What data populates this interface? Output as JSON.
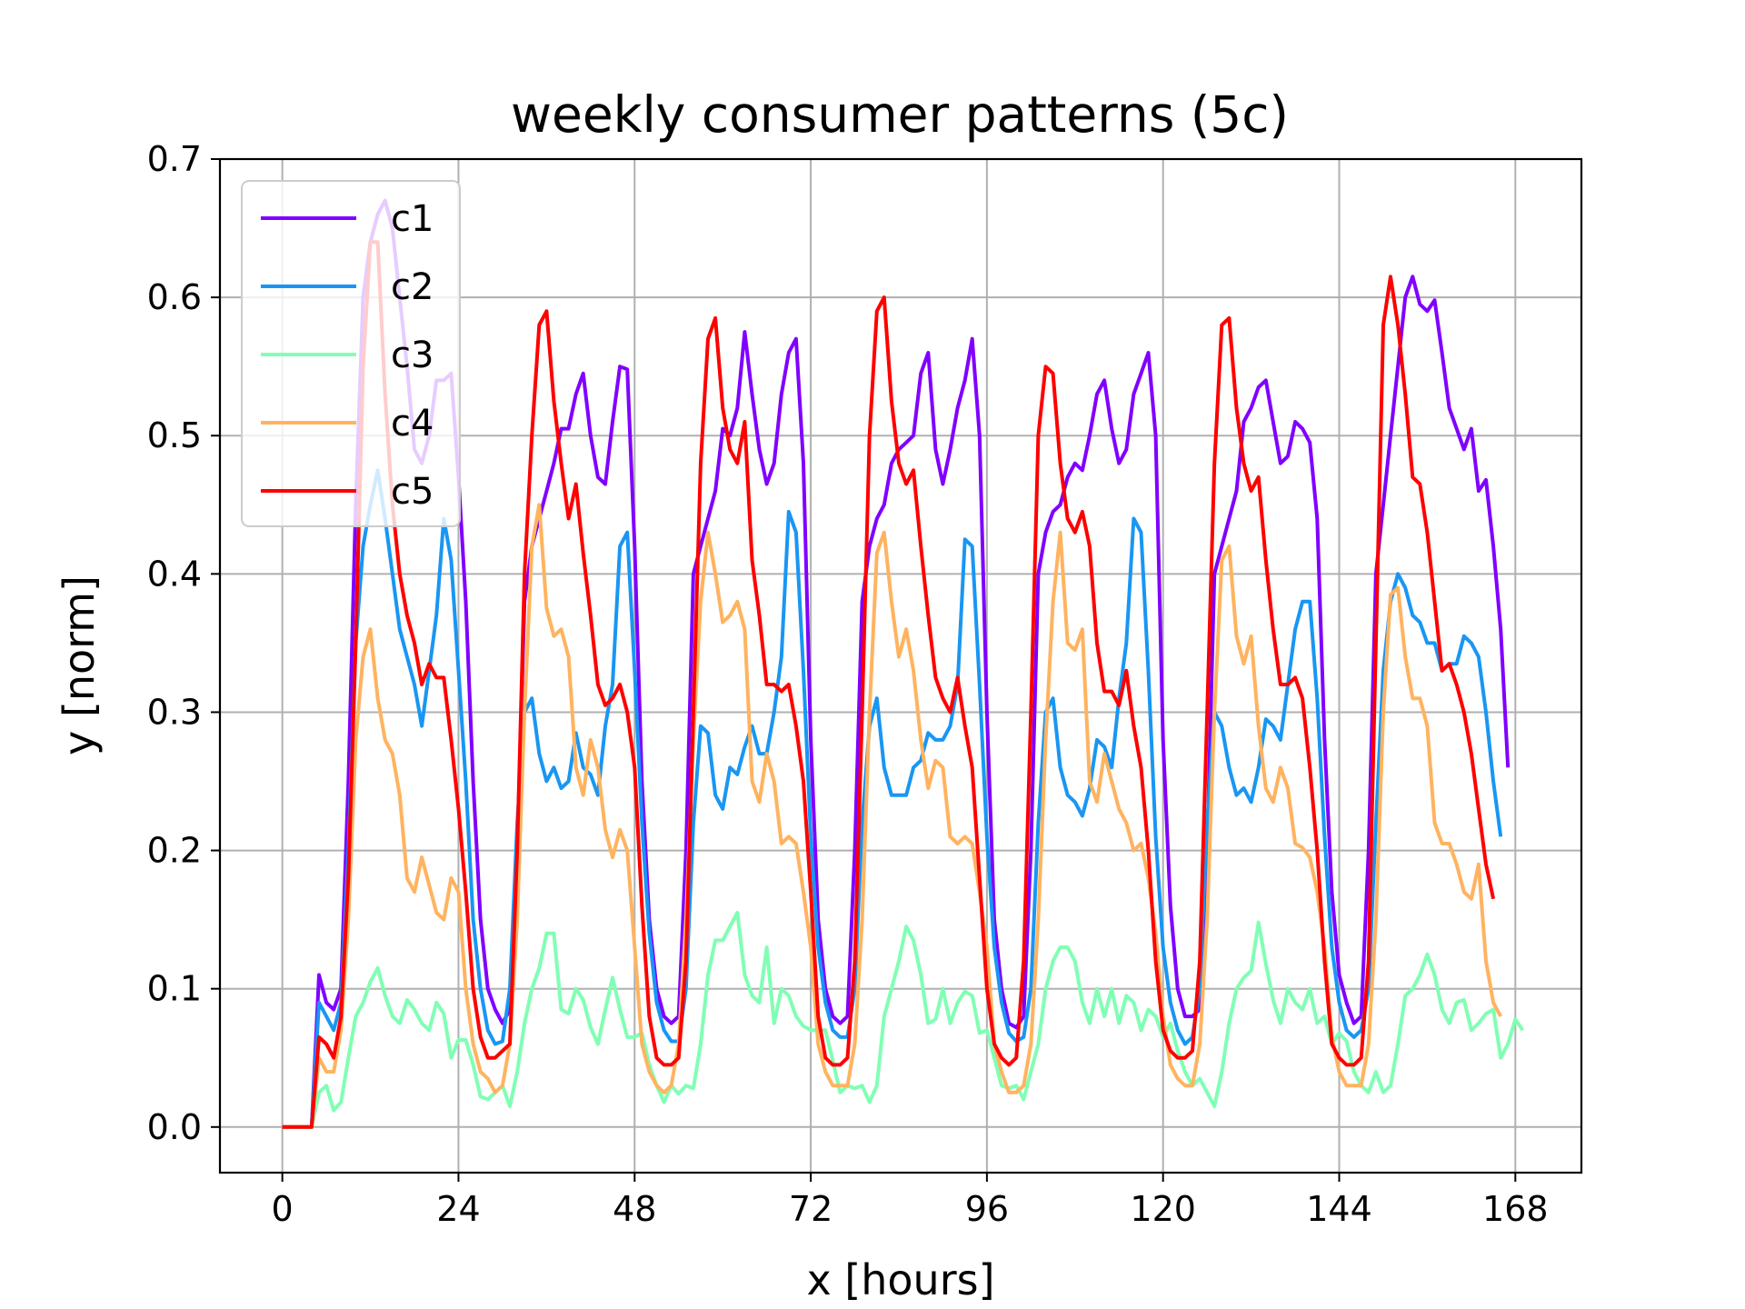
{
  "chart_data": {
    "type": "line",
    "title": "weekly consumer patterns (5c)",
    "xlabel": "x [hours]",
    "ylabel": "y [norm]",
    "xlim": [
      -8.5,
      177
    ],
    "ylim": [
      -0.033,
      0.7
    ],
    "xticks": [
      0,
      24,
      48,
      72,
      96,
      120,
      144,
      168
    ],
    "yticks": [
      0.0,
      0.1,
      0.2,
      0.3,
      0.4,
      0.5,
      0.6,
      0.7
    ],
    "ytick_labels": [
      "0.0",
      "0.1",
      "0.2",
      "0.3",
      "0.4",
      "0.5",
      "0.6",
      "0.7"
    ],
    "grid": true,
    "legend_position": "upper-left",
    "x_step_hours": 1,
    "series": [
      {
        "name": "c1",
        "color": "#8000ff",
        "values": [
          0,
          0,
          0,
          0,
          0,
          0.11,
          0.09,
          0.085,
          0.1,
          0.25,
          0.45,
          0.6,
          0.64,
          0.66,
          0.67,
          0.65,
          0.6,
          0.55,
          0.49,
          0.48,
          0.5,
          0.54,
          0.54,
          0.545,
          0.47,
          0.38,
          0.25,
          0.15,
          0.1,
          0.085,
          0.075,
          0.085,
          0.2,
          0.38,
          0.42,
          0.44,
          0.46,
          0.48,
          0.505,
          0.505,
          0.53,
          0.545,
          0.5,
          0.47,
          0.465,
          0.51,
          0.55,
          0.548,
          0.42,
          0.25,
          0.15,
          0.1,
          0.08,
          0.075,
          0.08,
          0.2,
          0.4,
          0.42,
          0.44,
          0.46,
          0.505,
          0.5,
          0.52,
          0.575,
          0.53,
          0.49,
          0.465,
          0.48,
          0.53,
          0.56,
          0.57,
          0.48,
          0.28,
          0.15,
          0.1,
          0.08,
          0.075,
          0.08,
          0.2,
          0.38,
          0.42,
          0.44,
          0.45,
          0.48,
          0.49,
          0.495,
          0.5,
          0.545,
          0.56,
          0.49,
          0.465,
          0.49,
          0.52,
          0.54,
          0.57,
          0.5,
          0.3,
          0.15,
          0.1,
          0.075,
          0.072,
          0.08,
          0.2,
          0.4,
          0.43,
          0.445,
          0.45,
          0.47,
          0.48,
          0.475,
          0.5,
          0.53,
          0.54,
          0.505,
          0.48,
          0.49,
          0.53,
          0.545,
          0.56,
          0.5,
          0.28,
          0.16,
          0.1,
          0.08,
          0.08,
          0.085,
          0.2,
          0.4,
          0.42,
          0.44,
          0.46,
          0.51,
          0.52,
          0.535,
          0.54,
          0.51,
          0.48,
          0.485,
          0.51,
          0.505,
          0.495,
          0.44,
          0.28,
          0.17,
          0.11,
          0.09,
          0.075,
          0.08,
          0.2,
          0.4,
          0.45,
          0.5,
          0.55,
          0.6,
          0.615,
          0.595,
          0.59,
          0.598,
          0.56,
          0.52,
          0.505,
          0.49,
          0.505,
          0.46,
          0.468,
          0.42,
          0.36,
          0.26
        ]
      },
      {
        "name": "c2",
        "color": "#1996f3",
        "values": [
          0,
          0,
          0,
          0,
          0,
          0.09,
          0.08,
          0.07,
          0.09,
          0.2,
          0.35,
          0.42,
          0.45,
          0.475,
          0.44,
          0.4,
          0.36,
          0.34,
          0.32,
          0.29,
          0.33,
          0.37,
          0.44,
          0.41,
          0.33,
          0.25,
          0.15,
          0.1,
          0.07,
          0.06,
          0.062,
          0.1,
          0.22,
          0.3,
          0.31,
          0.27,
          0.25,
          0.26,
          0.245,
          0.25,
          0.285,
          0.26,
          0.255,
          0.24,
          0.29,
          0.32,
          0.42,
          0.43,
          0.33,
          0.22,
          0.14,
          0.09,
          0.07,
          0.062,
          0.062,
          0.1,
          0.22,
          0.29,
          0.285,
          0.24,
          0.23,
          0.26,
          0.255,
          0.275,
          0.29,
          0.27,
          0.27,
          0.3,
          0.34,
          0.445,
          0.43,
          0.33,
          0.21,
          0.13,
          0.09,
          0.07,
          0.065,
          0.065,
          0.1,
          0.22,
          0.29,
          0.31,
          0.26,
          0.24,
          0.24,
          0.24,
          0.26,
          0.265,
          0.285,
          0.28,
          0.28,
          0.29,
          0.32,
          0.425,
          0.42,
          0.32,
          0.21,
          0.13,
          0.09,
          0.068,
          0.062,
          0.065,
          0.1,
          0.22,
          0.3,
          0.31,
          0.26,
          0.24,
          0.235,
          0.225,
          0.245,
          0.28,
          0.275,
          0.26,
          0.31,
          0.35,
          0.44,
          0.43,
          0.33,
          0.21,
          0.13,
          0.09,
          0.07,
          0.06,
          0.065,
          0.1,
          0.22,
          0.3,
          0.29,
          0.26,
          0.24,
          0.245,
          0.235,
          0.26,
          0.295,
          0.29,
          0.28,
          0.32,
          0.36,
          0.38,
          0.38,
          0.31,
          0.21,
          0.13,
          0.09,
          0.07,
          0.065,
          0.07,
          0.1,
          0.22,
          0.33,
          0.38,
          0.4,
          0.39,
          0.37,
          0.365,
          0.35,
          0.35,
          0.33,
          0.335,
          0.335,
          0.355,
          0.35,
          0.34,
          0.3,
          0.25,
          0.21
        ]
      },
      {
        "name": "c3",
        "color": "#80ffb4",
        "values": [
          0,
          0,
          0,
          0,
          0,
          0.025,
          0.03,
          0.012,
          0.018,
          0.05,
          0.08,
          0.09,
          0.105,
          0.115,
          0.095,
          0.08,
          0.075,
          0.092,
          0.085,
          0.075,
          0.07,
          0.09,
          0.082,
          0.05,
          0.063,
          0.063,
          0.045,
          0.022,
          0.02,
          0.025,
          0.03,
          0.015,
          0.04,
          0.075,
          0.1,
          0.115,
          0.14,
          0.14,
          0.085,
          0.082,
          0.1,
          0.092,
          0.072,
          0.06,
          0.085,
          0.108,
          0.085,
          0.065,
          0.065,
          0.068,
          0.045,
          0.03,
          0.018,
          0.03,
          0.024,
          0.03,
          0.028,
          0.06,
          0.11,
          0.135,
          0.135,
          0.145,
          0.155,
          0.11,
          0.095,
          0.09,
          0.13,
          0.075,
          0.1,
          0.095,
          0.08,
          0.073,
          0.07,
          0.07,
          0.07,
          0.048,
          0.025,
          0.03,
          0.028,
          0.03,
          0.018,
          0.03,
          0.08,
          0.1,
          0.12,
          0.145,
          0.135,
          0.11,
          0.075,
          0.078,
          0.1,
          0.075,
          0.09,
          0.098,
          0.095,
          0.068,
          0.07,
          0.05,
          0.03,
          0.028,
          0.03,
          0.02,
          0.04,
          0.06,
          0.1,
          0.12,
          0.13,
          0.13,
          0.12,
          0.09,
          0.075,
          0.1,
          0.08,
          0.1,
          0.075,
          0.095,
          0.09,
          0.07,
          0.085,
          0.08,
          0.065,
          0.075,
          0.055,
          0.04,
          0.03,
          0.035,
          0.025,
          0.015,
          0.04,
          0.075,
          0.1,
          0.108,
          0.113,
          0.148,
          0.118,
          0.092,
          0.075,
          0.1,
          0.09,
          0.085,
          0.1,
          0.075,
          0.08,
          0.06,
          0.068,
          0.062,
          0.04,
          0.03,
          0.025,
          0.04,
          0.025,
          0.03,
          0.06,
          0.095,
          0.1,
          0.11,
          0.125,
          0.11,
          0.085,
          0.075,
          0.09,
          0.092,
          0.07,
          0.075,
          0.082,
          0.085,
          0.05,
          0.06,
          0.078,
          0.07
        ]
      },
      {
        "name": "c4",
        "color": "#ffb360",
        "values": [
          0,
          0,
          0,
          0,
          0,
          0.05,
          0.04,
          0.04,
          0.07,
          0.15,
          0.28,
          0.34,
          0.36,
          0.31,
          0.28,
          0.27,
          0.24,
          0.18,
          0.17,
          0.195,
          0.175,
          0.155,
          0.15,
          0.18,
          0.17,
          0.1,
          0.06,
          0.04,
          0.035,
          0.025,
          0.03,
          0.06,
          0.15,
          0.3,
          0.42,
          0.45,
          0.375,
          0.355,
          0.36,
          0.34,
          0.26,
          0.24,
          0.28,
          0.26,
          0.215,
          0.195,
          0.215,
          0.2,
          0.13,
          0.06,
          0.04,
          0.03,
          0.025,
          0.03,
          0.06,
          0.15,
          0.28,
          0.38,
          0.43,
          0.4,
          0.365,
          0.37,
          0.38,
          0.36,
          0.25,
          0.235,
          0.27,
          0.25,
          0.205,
          0.21,
          0.205,
          0.17,
          0.13,
          0.06,
          0.04,
          0.03,
          0.03,
          0.03,
          0.06,
          0.15,
          0.3,
          0.415,
          0.43,
          0.38,
          0.34,
          0.36,
          0.33,
          0.28,
          0.245,
          0.265,
          0.26,
          0.21,
          0.205,
          0.21,
          0.205,
          0.17,
          0.13,
          0.06,
          0.04,
          0.025,
          0.025,
          0.03,
          0.06,
          0.15,
          0.28,
          0.38,
          0.43,
          0.35,
          0.345,
          0.36,
          0.25,
          0.235,
          0.27,
          0.25,
          0.23,
          0.22,
          0.2,
          0.205,
          0.18,
          0.14,
          0.08,
          0.045,
          0.035,
          0.03,
          0.03,
          0.06,
          0.15,
          0.3,
          0.41,
          0.42,
          0.355,
          0.335,
          0.355,
          0.29,
          0.245,
          0.235,
          0.26,
          0.245,
          0.205,
          0.202,
          0.195,
          0.17,
          0.13,
          0.065,
          0.04,
          0.03,
          0.03,
          0.03,
          0.06,
          0.15,
          0.3,
          0.385,
          0.39,
          0.34,
          0.31,
          0.31,
          0.29,
          0.22,
          0.205,
          0.205,
          0.19,
          0.17,
          0.165,
          0.19,
          0.12,
          0.09,
          0.08
        ]
      },
      {
        "name": "c5",
        "color": "#ff0000",
        "values": [
          0,
          0,
          0,
          0,
          0,
          0.065,
          0.06,
          0.05,
          0.08,
          0.18,
          0.35,
          0.55,
          0.64,
          0.64,
          0.53,
          0.45,
          0.4,
          0.37,
          0.35,
          0.32,
          0.335,
          0.325,
          0.325,
          0.28,
          0.23,
          0.17,
          0.1,
          0.065,
          0.05,
          0.05,
          0.055,
          0.06,
          0.2,
          0.4,
          0.5,
          0.58,
          0.59,
          0.525,
          0.48,
          0.44,
          0.465,
          0.415,
          0.37,
          0.32,
          0.305,
          0.31,
          0.32,
          0.3,
          0.26,
          0.16,
          0.08,
          0.05,
          0.045,
          0.045,
          0.05,
          0.12,
          0.3,
          0.48,
          0.57,
          0.585,
          0.52,
          0.49,
          0.48,
          0.51,
          0.41,
          0.37,
          0.32,
          0.32,
          0.315,
          0.32,
          0.29,
          0.25,
          0.17,
          0.08,
          0.05,
          0.045,
          0.045,
          0.05,
          0.12,
          0.3,
          0.5,
          0.59,
          0.6,
          0.525,
          0.48,
          0.465,
          0.475,
          0.42,
          0.37,
          0.325,
          0.31,
          0.3,
          0.325,
          0.29,
          0.26,
          0.18,
          0.1,
          0.06,
          0.05,
          0.045,
          0.05,
          0.12,
          0.3,
          0.5,
          0.55,
          0.545,
          0.48,
          0.44,
          0.43,
          0.445,
          0.42,
          0.35,
          0.315,
          0.315,
          0.305,
          0.33,
          0.29,
          0.26,
          0.2,
          0.12,
          0.07,
          0.055,
          0.05,
          0.05,
          0.055,
          0.12,
          0.3,
          0.48,
          0.58,
          0.585,
          0.52,
          0.48,
          0.46,
          0.47,
          0.41,
          0.36,
          0.32,
          0.32,
          0.325,
          0.31,
          0.26,
          0.2,
          0.12,
          0.06,
          0.05,
          0.045,
          0.045,
          0.05,
          0.12,
          0.35,
          0.58,
          0.615,
          0.58,
          0.53,
          0.47,
          0.465,
          0.43,
          0.38,
          0.33,
          0.335,
          0.32,
          0.3,
          0.27,
          0.23,
          0.19,
          0.165
        ]
      }
    ]
  }
}
